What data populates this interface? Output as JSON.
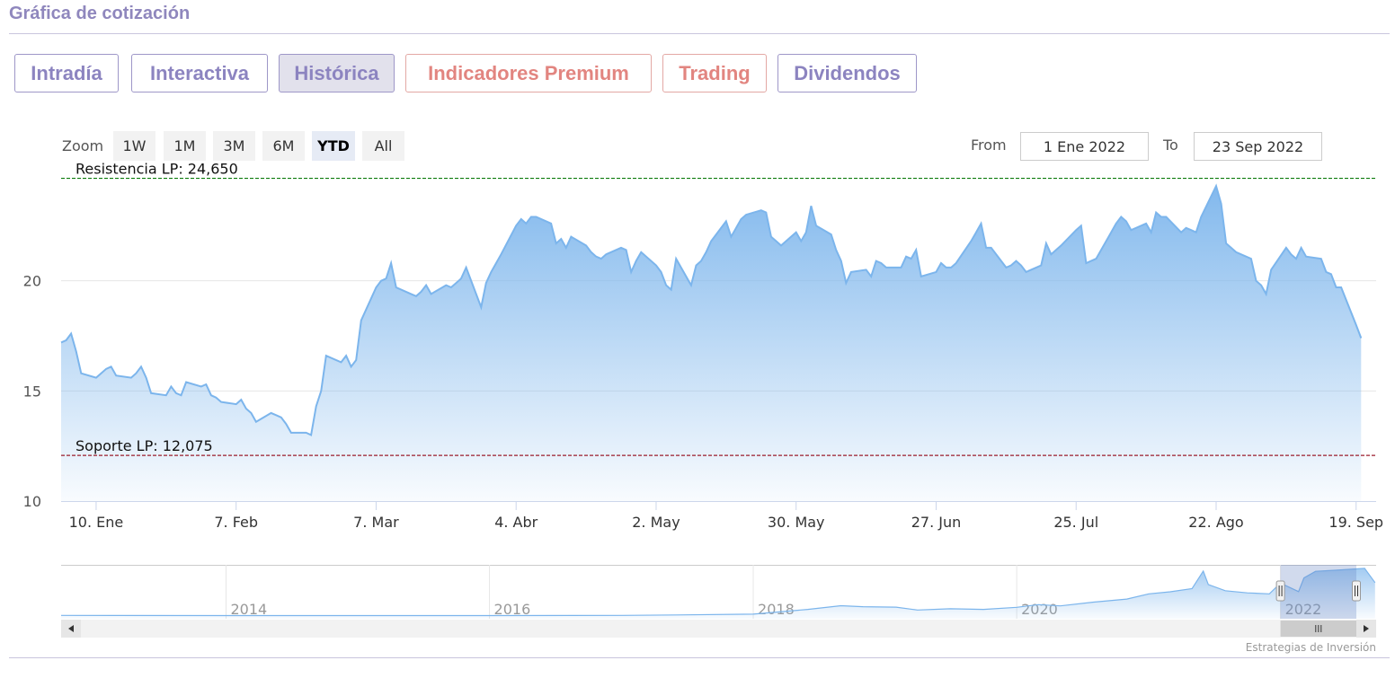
{
  "header": {
    "title": "Gráfica de cotización"
  },
  "tabs": [
    {
      "label": "Intradía",
      "active": false,
      "premium": false
    },
    {
      "label": "Interactiva",
      "active": false,
      "premium": false
    },
    {
      "label": "Histórica",
      "active": true,
      "premium": false
    },
    {
      "label": "Indicadores Premium",
      "active": false,
      "premium": true
    },
    {
      "label": "Trading",
      "active": false,
      "premium": true
    },
    {
      "label": "Dividendos",
      "active": false,
      "premium": false
    }
  ],
  "zoom": {
    "label": "Zoom",
    "buttons": [
      "1W",
      "1M",
      "3M",
      "6M",
      "YTD",
      "All"
    ],
    "selected": "YTD"
  },
  "range": {
    "from_label": "From",
    "from_value": "1 Ene 2022",
    "to_label": "To",
    "to_value": "23 Sep 2022"
  },
  "credits": "Estrategias de Inversión",
  "colors": {
    "line": "#7cb5ec",
    "resistance": "#0b7a0b",
    "support": "#9b1c2c",
    "tab_text": "#8c84c0",
    "premium_text": "#e28580"
  },
  "chart_data": {
    "type": "area",
    "xlim": [
      "2022-01-03",
      "2022-09-23"
    ],
    "ylim": [
      10,
      25
    ],
    "yticks": [
      10,
      15,
      20
    ],
    "xticks": [
      {
        "date": "2022-01-10",
        "label": "10. Ene"
      },
      {
        "date": "2022-02-07",
        "label": "7. Feb"
      },
      {
        "date": "2022-03-07",
        "label": "7. Mar"
      },
      {
        "date": "2022-04-04",
        "label": "4. Abr"
      },
      {
        "date": "2022-05-02",
        "label": "2. May"
      },
      {
        "date": "2022-05-30",
        "label": "30. May"
      },
      {
        "date": "2022-06-27",
        "label": "27. Jun"
      },
      {
        "date": "2022-07-25",
        "label": "25. Jul"
      },
      {
        "date": "2022-08-22",
        "label": "22. Ago"
      },
      {
        "date": "2022-09-19",
        "label": "19. Sep"
      }
    ],
    "plot_lines": [
      {
        "label": "Resistencia LP: 24,650",
        "value": 24.65,
        "color": "#0b7a0b"
      },
      {
        "label": "Soporte LP: 12,075",
        "value": 12.075,
        "color": "#9b1c2c"
      }
    ],
    "series": [
      {
        "points": [
          [
            "2022-01-03",
            17.2
          ],
          [
            "2022-01-04",
            17.3
          ],
          [
            "2022-01-05",
            17.6
          ],
          [
            "2022-01-06",
            16.8
          ],
          [
            "2022-01-07",
            15.8
          ],
          [
            "2022-01-10",
            15.6
          ],
          [
            "2022-01-11",
            15.8
          ],
          [
            "2022-01-12",
            16.0
          ],
          [
            "2022-01-13",
            16.1
          ],
          [
            "2022-01-14",
            15.7
          ],
          [
            "2022-01-17",
            15.6
          ],
          [
            "2022-01-18",
            15.8
          ],
          [
            "2022-01-19",
            16.1
          ],
          [
            "2022-01-20",
            15.6
          ],
          [
            "2022-01-21",
            14.9
          ],
          [
            "2022-01-24",
            14.8
          ],
          [
            "2022-01-25",
            15.2
          ],
          [
            "2022-01-26",
            14.9
          ],
          [
            "2022-01-27",
            14.8
          ],
          [
            "2022-01-28",
            15.4
          ],
          [
            "2022-01-31",
            15.2
          ],
          [
            "2022-02-01",
            15.3
          ],
          [
            "2022-02-02",
            14.8
          ],
          [
            "2022-02-03",
            14.7
          ],
          [
            "2022-02-04",
            14.5
          ],
          [
            "2022-02-07",
            14.4
          ],
          [
            "2022-02-08",
            14.6
          ],
          [
            "2022-02-09",
            14.2
          ],
          [
            "2022-02-10",
            14.0
          ],
          [
            "2022-02-11",
            13.6
          ],
          [
            "2022-02-14",
            14.0
          ],
          [
            "2022-02-15",
            13.9
          ],
          [
            "2022-02-16",
            13.8
          ],
          [
            "2022-02-17",
            13.5
          ],
          [
            "2022-02-18",
            13.1
          ],
          [
            "2022-02-21",
            13.1
          ],
          [
            "2022-02-22",
            13.0
          ],
          [
            "2022-02-23",
            14.3
          ],
          [
            "2022-02-24",
            15.0
          ],
          [
            "2022-02-25",
            16.6
          ],
          [
            "2022-02-28",
            16.3
          ],
          [
            "2022-03-01",
            16.6
          ],
          [
            "2022-03-02",
            16.1
          ],
          [
            "2022-03-03",
            16.4
          ],
          [
            "2022-03-04",
            18.2
          ],
          [
            "2022-03-07",
            19.7
          ],
          [
            "2022-03-08",
            20.0
          ],
          [
            "2022-03-09",
            20.1
          ],
          [
            "2022-03-10",
            20.8
          ],
          [
            "2022-03-11",
            19.7
          ],
          [
            "2022-03-14",
            19.4
          ],
          [
            "2022-03-15",
            19.3
          ],
          [
            "2022-03-16",
            19.5
          ],
          [
            "2022-03-17",
            19.8
          ],
          [
            "2022-03-18",
            19.4
          ],
          [
            "2022-03-21",
            19.8
          ],
          [
            "2022-03-22",
            19.7
          ],
          [
            "2022-03-23",
            19.9
          ],
          [
            "2022-03-24",
            20.1
          ],
          [
            "2022-03-25",
            20.6
          ],
          [
            "2022-03-28",
            18.8
          ],
          [
            "2022-03-29",
            19.9
          ],
          [
            "2022-03-30",
            20.4
          ],
          [
            "2022-03-31",
            20.8
          ],
          [
            "2022-04-01",
            21.2
          ],
          [
            "2022-04-04",
            22.5
          ],
          [
            "2022-04-05",
            22.8
          ],
          [
            "2022-04-06",
            22.6
          ],
          [
            "2022-04-07",
            22.9
          ],
          [
            "2022-04-08",
            22.9
          ],
          [
            "2022-04-11",
            22.6
          ],
          [
            "2022-04-12",
            21.7
          ],
          [
            "2022-04-13",
            21.9
          ],
          [
            "2022-04-14",
            21.5
          ],
          [
            "2022-04-15",
            22.0
          ],
          [
            "2022-04-18",
            21.6
          ],
          [
            "2022-04-19",
            21.3
          ],
          [
            "2022-04-20",
            21.1
          ],
          [
            "2022-04-21",
            21.0
          ],
          [
            "2022-04-22",
            21.2
          ],
          [
            "2022-04-25",
            21.5
          ],
          [
            "2022-04-26",
            21.4
          ],
          [
            "2022-04-27",
            20.4
          ],
          [
            "2022-04-28",
            20.9
          ],
          [
            "2022-04-29",
            21.3
          ],
          [
            "2022-05-02",
            20.7
          ],
          [
            "2022-05-03",
            20.4
          ],
          [
            "2022-05-04",
            19.8
          ],
          [
            "2022-05-05",
            19.6
          ],
          [
            "2022-05-06",
            21.0
          ],
          [
            "2022-05-09",
            19.8
          ],
          [
            "2022-05-10",
            20.7
          ],
          [
            "2022-05-11",
            20.9
          ],
          [
            "2022-05-12",
            21.3
          ],
          [
            "2022-05-13",
            21.8
          ],
          [
            "2022-05-16",
            22.7
          ],
          [
            "2022-05-17",
            22.0
          ],
          [
            "2022-05-18",
            22.4
          ],
          [
            "2022-05-19",
            22.8
          ],
          [
            "2022-05-20",
            23.0
          ],
          [
            "2022-05-23",
            23.2
          ],
          [
            "2022-05-24",
            23.1
          ],
          [
            "2022-05-25",
            22.0
          ],
          [
            "2022-05-26",
            21.8
          ],
          [
            "2022-05-27",
            21.6
          ],
          [
            "2022-05-30",
            22.2
          ],
          [
            "2022-05-31",
            21.8
          ],
          [
            "2022-06-01",
            22.2
          ],
          [
            "2022-06-02",
            23.4
          ],
          [
            "2022-06-03",
            22.5
          ],
          [
            "2022-06-06",
            22.1
          ],
          [
            "2022-06-07",
            21.4
          ],
          [
            "2022-06-08",
            20.9
          ],
          [
            "2022-06-09",
            19.9
          ],
          [
            "2022-06-10",
            20.4
          ],
          [
            "2022-06-13",
            20.5
          ],
          [
            "2022-06-14",
            20.2
          ],
          [
            "2022-06-15",
            20.9
          ],
          [
            "2022-06-16",
            20.8
          ],
          [
            "2022-06-17",
            20.6
          ],
          [
            "2022-06-20",
            20.6
          ],
          [
            "2022-06-21",
            21.1
          ],
          [
            "2022-06-22",
            21.0
          ],
          [
            "2022-06-23",
            21.4
          ],
          [
            "2022-06-24",
            20.2
          ],
          [
            "2022-06-27",
            20.4
          ],
          [
            "2022-06-28",
            20.8
          ],
          [
            "2022-06-29",
            20.6
          ],
          [
            "2022-06-30",
            20.6
          ],
          [
            "2022-07-01",
            20.8
          ],
          [
            "2022-07-04",
            21.8
          ],
          [
            "2022-07-05",
            22.2
          ],
          [
            "2022-07-06",
            22.6
          ],
          [
            "2022-07-07",
            21.5
          ],
          [
            "2022-07-08",
            21.5
          ],
          [
            "2022-07-11",
            20.6
          ],
          [
            "2022-07-12",
            20.7
          ],
          [
            "2022-07-13",
            20.9
          ],
          [
            "2022-07-14",
            20.7
          ],
          [
            "2022-07-15",
            20.4
          ],
          [
            "2022-07-18",
            20.7
          ],
          [
            "2022-07-19",
            21.7
          ],
          [
            "2022-07-20",
            21.2
          ],
          [
            "2022-07-21",
            21.4
          ],
          [
            "2022-07-22",
            21.6
          ],
          [
            "2022-07-25",
            22.3
          ],
          [
            "2022-07-26",
            22.5
          ],
          [
            "2022-07-27",
            20.8
          ],
          [
            "2022-07-28",
            20.9
          ],
          [
            "2022-07-29",
            21.0
          ],
          [
            "2022-08-01",
            22.2
          ],
          [
            "2022-08-02",
            22.6
          ],
          [
            "2022-08-03",
            22.9
          ],
          [
            "2022-08-04",
            22.7
          ],
          [
            "2022-08-05",
            22.3
          ],
          [
            "2022-08-08",
            22.6
          ],
          [
            "2022-08-09",
            22.2
          ],
          [
            "2022-08-10",
            23.1
          ],
          [
            "2022-08-11",
            22.9
          ],
          [
            "2022-08-12",
            22.9
          ],
          [
            "2022-08-15",
            22.2
          ],
          [
            "2022-08-16",
            22.4
          ],
          [
            "2022-08-17",
            22.3
          ],
          [
            "2022-08-18",
            22.2
          ],
          [
            "2022-08-19",
            22.9
          ],
          [
            "2022-08-22",
            24.3
          ],
          [
            "2022-08-23",
            23.5
          ],
          [
            "2022-08-24",
            21.7
          ],
          [
            "2022-08-25",
            21.5
          ],
          [
            "2022-08-26",
            21.3
          ],
          [
            "2022-08-29",
            21.0
          ],
          [
            "2022-08-30",
            20.0
          ],
          [
            "2022-08-31",
            19.8
          ],
          [
            "2022-09-01",
            19.4
          ],
          [
            "2022-09-02",
            20.5
          ],
          [
            "2022-09-05",
            21.5
          ],
          [
            "2022-09-06",
            21.2
          ],
          [
            "2022-09-07",
            21.0
          ],
          [
            "2022-09-08",
            21.5
          ],
          [
            "2022-09-09",
            21.1
          ],
          [
            "2022-09-12",
            21.0
          ],
          [
            "2022-09-13",
            20.4
          ],
          [
            "2022-09-14",
            20.3
          ],
          [
            "2022-09-15",
            19.7
          ],
          [
            "2022-09-16",
            19.7
          ],
          [
            "2022-09-19",
            18.0
          ],
          [
            "2022-09-20",
            17.4
          ]
        ]
      }
    ],
    "navigator": {
      "xlim": [
        "2012-10-01",
        "2022-09-23"
      ],
      "xticks": [
        "2014",
        "2016",
        "2018",
        "2020",
        "2022"
      ],
      "selection": [
        "2022-01-01",
        "2022-09-23"
      ],
      "ylim": [
        0,
        26
      ],
      "points": [
        [
          "2012-10-01",
          1.6
        ],
        [
          "2014-01-01",
          1.5
        ],
        [
          "2015-01-01",
          1.5
        ],
        [
          "2016-01-01",
          1.5
        ],
        [
          "2017-01-01",
          1.6
        ],
        [
          "2017-06-01",
          1.8
        ],
        [
          "2018-01-01",
          2.2
        ],
        [
          "2018-06-01",
          4.5
        ],
        [
          "2018-09-01",
          6.3
        ],
        [
          "2018-11-01",
          5.8
        ],
        [
          "2019-02-01",
          5.6
        ],
        [
          "2019-04-01",
          4.2
        ],
        [
          "2019-07-01",
          4.8
        ],
        [
          "2019-10-01",
          4.5
        ],
        [
          "2020-01-01",
          5.5
        ],
        [
          "2020-03-01",
          6.8
        ],
        [
          "2020-05-01",
          6.2
        ],
        [
          "2020-08-01",
          8.0
        ],
        [
          "2020-11-01",
          9.5
        ],
        [
          "2021-01-01",
          12.0
        ],
        [
          "2021-03-01",
          13.0
        ],
        [
          "2021-05-01",
          14.5
        ],
        [
          "2021-06-01",
          23.0
        ],
        [
          "2021-06-15",
          16.5
        ],
        [
          "2021-08-01",
          13.5
        ],
        [
          "2021-10-01",
          12.5
        ],
        [
          "2021-12-01",
          12.0
        ],
        [
          "2022-01-01",
          17.2
        ],
        [
          "2022-02-20",
          13.1
        ],
        [
          "2022-03-07",
          19.7
        ],
        [
          "2022-04-08",
          22.9
        ],
        [
          "2022-06-02",
          23.4
        ],
        [
          "2022-08-22",
          24.3
        ],
        [
          "2022-09-20",
          17.4
        ]
      ]
    }
  }
}
